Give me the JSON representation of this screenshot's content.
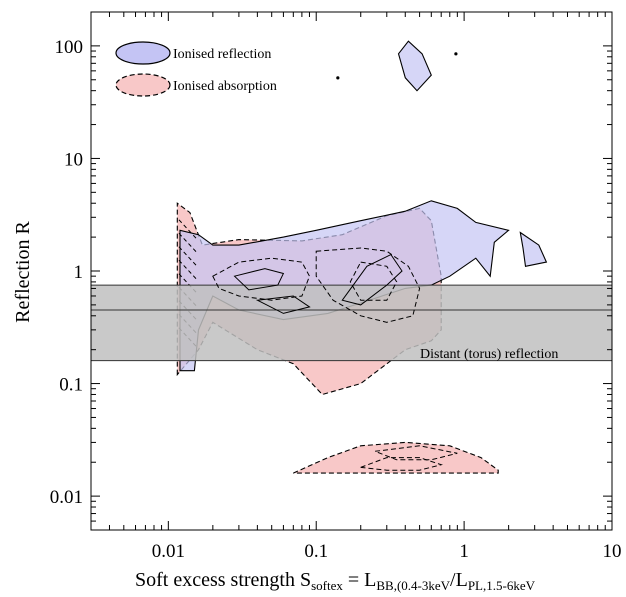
{
  "chart_data": {
    "type": "contour",
    "xlabel": {
      "prefix": "Soft excess strength S",
      "prefix_sub": "softex",
      "mid": " = L",
      "mid_sub": "BB,(0.4-3keV",
      "slash": "/L",
      "end_sub": "PL,1.5-6keV"
    },
    "ylabel": "Reflection R",
    "x_scale": "log",
    "y_scale": "log",
    "xlim": [
      0.003,
      10
    ],
    "ylim": [
      0.005,
      200
    ],
    "x_ticks": [
      {
        "value": 0.01,
        "label": "0.01"
      },
      {
        "value": 0.1,
        "label": "0.1"
      },
      {
        "value": 1,
        "label": "1"
      },
      {
        "value": 10,
        "label": "10"
      }
    ],
    "y_ticks": [
      {
        "value": 0.01,
        "label": "0.01"
      },
      {
        "value": 0.1,
        "label": "0.1"
      },
      {
        "value": 1,
        "label": "1"
      },
      {
        "value": 10,
        "label": "10"
      },
      {
        "value": 100,
        "label": "100"
      }
    ],
    "band": {
      "label": "Distant (torus) reflection",
      "y_low": 0.16,
      "y_mid": 0.45,
      "y_high": 0.75,
      "color": "#c0c0c0"
    },
    "legend": {
      "placement": "top-left",
      "entries": [
        {
          "label": "Ionised reflection",
          "color": "#c4c4f4",
          "line": "solid"
        },
        {
          "label": "Ionised absorption",
          "color": "#f8c8c8",
          "line": "dashed"
        }
      ]
    },
    "series": [
      {
        "name": "Ionised reflection",
        "fill": "#c4c4f4",
        "line": "solid",
        "regions": [
          [
            [
              0.012,
              0.13
            ],
            [
              0.012,
              2.3
            ],
            [
              0.016,
              2.1
            ],
            [
              0.02,
              1.7
            ],
            [
              0.03,
              1.7
            ],
            [
              0.06,
              2.0
            ],
            [
              0.1,
              2.3
            ],
            [
              0.2,
              2.8
            ],
            [
              0.4,
              3.4
            ],
            [
              0.6,
              4.2
            ],
            [
              0.9,
              3.6
            ],
            [
              1.2,
              2.7
            ],
            [
              2.0,
              2.3
            ],
            [
              1.6,
              1.8
            ],
            [
              1.5,
              0.9
            ],
            [
              1.2,
              1.3
            ],
            [
              0.8,
              0.9
            ],
            [
              0.6,
              0.75
            ],
            [
              0.4,
              0.7
            ],
            [
              0.2,
              0.52
            ],
            [
              0.12,
              0.42
            ],
            [
              0.06,
              0.37
            ],
            [
              0.03,
              0.45
            ],
            [
              0.02,
              0.6
            ],
            [
              0.016,
              0.3
            ],
            [
              0.015,
              0.13
            ]
          ],
          [
            [
              0.36,
              85
            ],
            [
              0.42,
              110
            ],
            [
              0.52,
              85
            ],
            [
              0.6,
              55
            ],
            [
              0.48,
              40
            ],
            [
              0.4,
              52
            ]
          ],
          [
            [
              2.4,
              2.2
            ],
            [
              3.2,
              1.7
            ],
            [
              3.6,
              1.2
            ],
            [
              2.6,
              1.1
            ],
            [
              2.5,
              1.6
            ]
          ]
        ]
      },
      {
        "name": "Ionised absorption",
        "fill": "#f8c8c8",
        "line": "dashed",
        "regions": [
          [
            [
              0.0115,
              0.12
            ],
            [
              0.0115,
              4.0
            ],
            [
              0.014,
              3.3
            ],
            [
              0.017,
              1.7
            ],
            [
              0.03,
              1.9
            ],
            [
              0.08,
              1.85
            ],
            [
              0.15,
              2.1
            ],
            [
              0.3,
              3.1
            ],
            [
              0.5,
              3.6
            ],
            [
              0.6,
              2.8
            ],
            [
              0.7,
              0.9
            ],
            [
              0.7,
              0.3
            ],
            [
              0.6,
              0.24
            ],
            [
              0.4,
              0.2
            ],
            [
              0.2,
              0.1
            ],
            [
              0.11,
              0.08
            ],
            [
              0.07,
              0.15
            ],
            [
              0.04,
              0.2
            ],
            [
              0.02,
              0.35
            ],
            [
              0.016,
              0.2
            ]
          ],
          [
            [
              0.07,
              0.016
            ],
            [
              0.12,
              0.022
            ],
            [
              0.2,
              0.028
            ],
            [
              0.4,
              0.03
            ],
            [
              0.8,
              0.028
            ],
            [
              1.3,
              0.022
            ],
            [
              1.7,
              0.017
            ],
            [
              1.7,
              0.016
            ]
          ]
        ]
      }
    ],
    "inner_contours": {
      "dashed": [
        [
          [
            0.02,
            0.9
          ],
          [
            0.03,
            1.2
          ],
          [
            0.05,
            1.3
          ],
          [
            0.08,
            1.2
          ],
          [
            0.09,
            0.9
          ],
          [
            0.08,
            0.6
          ],
          [
            0.05,
            0.55
          ],
          [
            0.03,
            0.6
          ],
          [
            0.022,
            0.7
          ]
        ],
        [
          [
            0.1,
            1.5
          ],
          [
            0.2,
            1.6
          ],
          [
            0.3,
            1.5
          ],
          [
            0.42,
            1.1
          ],
          [
            0.5,
            0.7
          ],
          [
            0.45,
            0.4
          ],
          [
            0.3,
            0.35
          ],
          [
            0.2,
            0.4
          ],
          [
            0.13,
            0.55
          ],
          [
            0.1,
            0.9
          ]
        ],
        [
          [
            0.2,
            1.2
          ],
          [
            0.3,
            1.1
          ],
          [
            0.35,
            0.8
          ],
          [
            0.3,
            0.55
          ],
          [
            0.2,
            0.55
          ],
          [
            0.17,
            0.8
          ]
        ],
        [
          [
            0.2,
            0.018
          ],
          [
            0.3,
            0.022
          ],
          [
            0.5,
            0.022
          ],
          [
            0.7,
            0.019
          ],
          [
            0.5,
            0.017
          ],
          [
            0.3,
            0.017
          ]
        ],
        [
          [
            0.25,
            0.025
          ],
          [
            0.5,
            0.028
          ],
          [
            0.9,
            0.024
          ],
          [
            0.6,
            0.021
          ],
          [
            0.35,
            0.021
          ]
        ]
      ],
      "solid": [
        [
          [
            0.028,
            0.9
          ],
          [
            0.045,
            1.05
          ],
          [
            0.06,
            0.95
          ],
          [
            0.055,
            0.75
          ],
          [
            0.035,
            0.68
          ]
        ],
        [
          [
            0.15,
            0.55
          ],
          [
            0.22,
            1.1
          ],
          [
            0.32,
            1.4
          ],
          [
            0.38,
            1.0
          ],
          [
            0.3,
            0.75
          ],
          [
            0.2,
            0.5
          ]
        ],
        [
          [
            0.04,
            0.55
          ],
          [
            0.07,
            0.6
          ],
          [
            0.09,
            0.48
          ],
          [
            0.06,
            0.42
          ]
        ]
      ],
      "dots": [
        [
          0.14,
          52
        ],
        [
          0.88,
          85
        ]
      ]
    }
  }
}
